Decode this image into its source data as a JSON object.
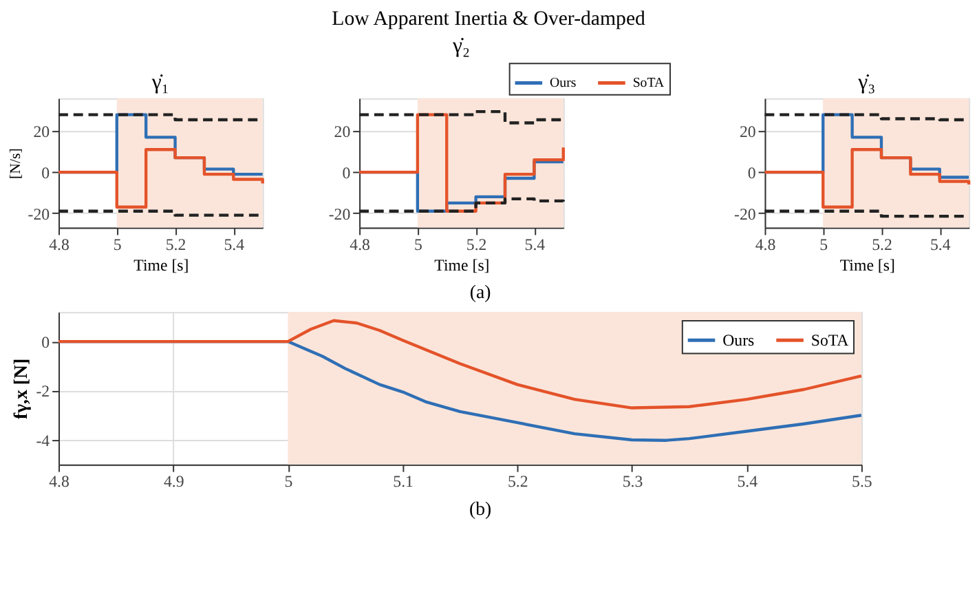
{
  "chart_data": [
    {
      "type": "step",
      "title": "γ̇₁",
      "xlabel": "Time [s]",
      "ylabel": "[N/s]",
      "annotations": [
        "Low Apparent Inertia & Over-damped"
      ],
      "x": [
        4.8,
        5,
        5.1,
        5.2,
        5.3,
        5.4,
        5.5
      ],
      "xlim": [
        4.8,
        5.5
      ],
      "xticks": [
        4.8,
        5,
        5.2,
        5.4
      ],
      "ylim": [
        -27,
        36
      ],
      "yticks": [
        -20,
        0,
        20
      ],
      "grid": true,
      "legend": false,
      "bands": [
        {
          "axis": "x",
          "from": 5,
          "to": 5.5,
          "color": "#fbe5da"
        }
      ],
      "series": [
        {
          "color": "#2f6fb5",
          "values": [
            0,
            28,
            17,
            7,
            1.5,
            -1,
            -1
          ]
        },
        {
          "color": "#e4532a",
          "values": [
            0,
            -17,
            11,
            7,
            -1,
            -3.5,
            -5.5
          ]
        },
        {
          "color": "#222222",
          "line_style": "dashed",
          "values": [
            28,
            28,
            28,
            25.5,
            25.5,
            25.5,
            25.5
          ]
        },
        {
          "color": "#222222",
          "line_style": "dashed",
          "values": [
            -19,
            -19,
            -19,
            -21,
            -21,
            -21,
            -21
          ]
        }
      ]
    },
    {
      "type": "step",
      "title": "γ̇₂",
      "xlabel": "Time [s]",
      "annotations": [
        "(a)"
      ],
      "x": [
        4.8,
        5,
        5.1,
        5.2,
        5.3,
        5.4,
        5.5
      ],
      "xlim": [
        4.8,
        5.5
      ],
      "xticks": [
        4.8,
        5,
        5.2,
        5.4
      ],
      "ylim": [
        -27,
        36
      ],
      "yticks": [
        -20,
        0,
        20
      ],
      "grid": true,
      "legend": "top right",
      "bands": [
        {
          "axis": "x",
          "from": 5,
          "to": 5.5,
          "color": "#fbe5da"
        }
      ],
      "series": [
        {
          "name": "Ours",
          "color": "#2f6fb5",
          "values": [
            0,
            -19,
            -15,
            -12,
            -3,
            5,
            5
          ]
        },
        {
          "name": "SoTA",
          "color": "#e4532a",
          "values": [
            0,
            28,
            -19,
            -15,
            -1,
            6,
            12
          ]
        },
        {
          "color": "#222222",
          "line_style": "dashed",
          "values": [
            28,
            28,
            28,
            29.5,
            24,
            25.5,
            26
          ]
        },
        {
          "color": "#222222",
          "line_style": "dashed",
          "values": [
            -19,
            -19,
            -19,
            -15,
            -13,
            -14,
            -15
          ]
        }
      ]
    },
    {
      "type": "step",
      "title": "γ̇₃",
      "xlabel": "Time [s]",
      "x": [
        4.8,
        5,
        5.1,
        5.2,
        5.3,
        5.4,
        5.5
      ],
      "xlim": [
        4.8,
        5.5
      ],
      "xticks": [
        4.8,
        5,
        5.2,
        5.4
      ],
      "ylim": [
        -27,
        36
      ],
      "yticks": [
        -20,
        0,
        20
      ],
      "grid": true,
      "legend": false,
      "bands": [
        {
          "axis": "x",
          "from": 5,
          "to": 5.5,
          "color": "#fbe5da"
        }
      ],
      "series": [
        {
          "color": "#2f6fb5",
          "values": [
            0,
            28,
            17,
            7,
            1.5,
            -2.5,
            -2.5
          ]
        },
        {
          "color": "#e4532a",
          "values": [
            0,
            -17,
            11,
            7,
            -1,
            -4.5,
            -6
          ]
        },
        {
          "color": "#222222",
          "line_style": "dashed",
          "values": [
            28,
            28,
            28,
            26,
            26,
            25.5,
            25.5
          ]
        },
        {
          "color": "#222222",
          "line_style": "dashed",
          "values": [
            -19,
            -19,
            -19,
            -21.5,
            -21.5,
            -21.5,
            -21.5
          ]
        }
      ]
    },
    {
      "type": "line",
      "ylabel": "fγ,x [N]",
      "annotations": [
        "(b)"
      ],
      "xlim": [
        4.8,
        5.5
      ],
      "xticks": [
        4.8,
        4.9,
        5,
        5.1,
        5.2,
        5.3,
        5.4,
        5.5
      ],
      "ylim": [
        -5,
        1.2
      ],
      "yticks": [
        -4,
        -2,
        0
      ],
      "grid": true,
      "legend": "top right",
      "bands": [
        {
          "axis": "x",
          "from": 5,
          "to": 5.5,
          "color": "#fbe5da"
        }
      ],
      "series": [
        {
          "name": "Ours",
          "color": "#2f6fb5",
          "x": [
            4.8,
            5,
            5.03,
            5.05,
            5.08,
            5.1,
            5.12,
            5.15,
            5.2,
            5.25,
            5.3,
            5.33,
            5.35,
            5.4,
            5.45,
            5.5
          ],
          "values": [
            0,
            0,
            -0.6,
            -1.1,
            -1.75,
            -2.05,
            -2.45,
            -2.85,
            -3.3,
            -3.75,
            -4.0,
            -4.02,
            -3.95,
            -3.65,
            -3.35,
            -3.0
          ]
        },
        {
          "name": "SoTA",
          "color": "#e4532a",
          "x": [
            4.8,
            5,
            5.02,
            5.04,
            5.06,
            5.08,
            5.1,
            5.15,
            5.2,
            5.25,
            5.3,
            5.35,
            5.4,
            5.45,
            5.5
          ],
          "values": [
            0,
            0,
            0.5,
            0.85,
            0.75,
            0.45,
            0.05,
            -0.9,
            -1.75,
            -2.35,
            -2.7,
            -2.65,
            -2.35,
            -1.95,
            -1.4
          ]
        }
      ]
    }
  ]
}
